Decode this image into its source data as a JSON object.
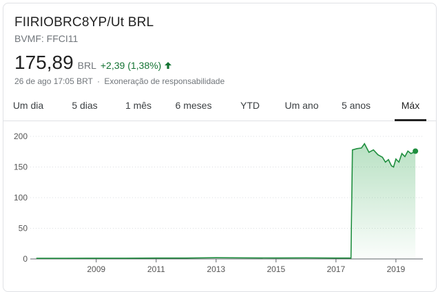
{
  "stock": {
    "title": "FIIRIOBRC8YP/Ut BRL",
    "ticker": "BVMF: FFCI11",
    "price": "175,89",
    "currency": "BRL",
    "change": "+2,39 (1,38%)",
    "direction_icon": "arrow-up-icon",
    "timestamp": "26 de ago 17:05 BRT",
    "separator": "·",
    "disclaimer": "Exoneração de responsabilidade"
  },
  "tabs": [
    {
      "label": "Um dia",
      "active": false
    },
    {
      "label": "5 dias",
      "active": false
    },
    {
      "label": "1 mês",
      "active": false
    },
    {
      "label": "6 meses",
      "active": false
    },
    {
      "label": "YTD",
      "active": false
    },
    {
      "label": "Um ano",
      "active": false
    },
    {
      "label": "5 anos",
      "active": false
    },
    {
      "label": "Máx",
      "active": true
    }
  ],
  "colors": {
    "positive": "#137333",
    "line": "#1e8e3e",
    "fill": "#e6f4ea",
    "grid": "#dadce0",
    "axis": "#5f6368"
  },
  "chart_data": {
    "type": "area",
    "yticks": [
      "0",
      "50",
      "100",
      "150",
      "200"
    ],
    "ylim": [
      0,
      200
    ],
    "xticks": [
      "2009",
      "2011",
      "2013",
      "2015",
      "2017",
      "2019"
    ],
    "xtick_values": [
      2009,
      2011,
      2013,
      2015,
      2017,
      2019
    ],
    "xlim": [
      2006.8,
      2019.9
    ],
    "grid": true,
    "series": [
      {
        "x": [
          2007.0,
          2008.0,
          2009.0,
          2010.0,
          2011.0,
          2012.0,
          2013.0,
          2014.0,
          2015.0,
          2016.0,
          2017.0,
          2017.5,
          2017.55,
          2017.7,
          2017.85,
          2017.95,
          2018.1,
          2018.25,
          2018.4,
          2018.55,
          2018.65,
          2018.75,
          2018.85,
          2018.92,
          2019.0,
          2019.1,
          2019.2,
          2019.3,
          2019.4,
          2019.5,
          2019.6,
          2019.65
        ],
        "y": [
          1.0,
          1.0,
          1.2,
          1.2,
          1.5,
          1.5,
          2.0,
          1.8,
          1.6,
          1.8,
          1.5,
          1.5,
          178,
          180,
          181,
          188,
          174,
          178,
          170,
          166,
          158,
          162,
          152,
          150,
          163,
          158,
          172,
          167,
          176,
          172,
          174,
          175.89
        ]
      }
    ]
  }
}
